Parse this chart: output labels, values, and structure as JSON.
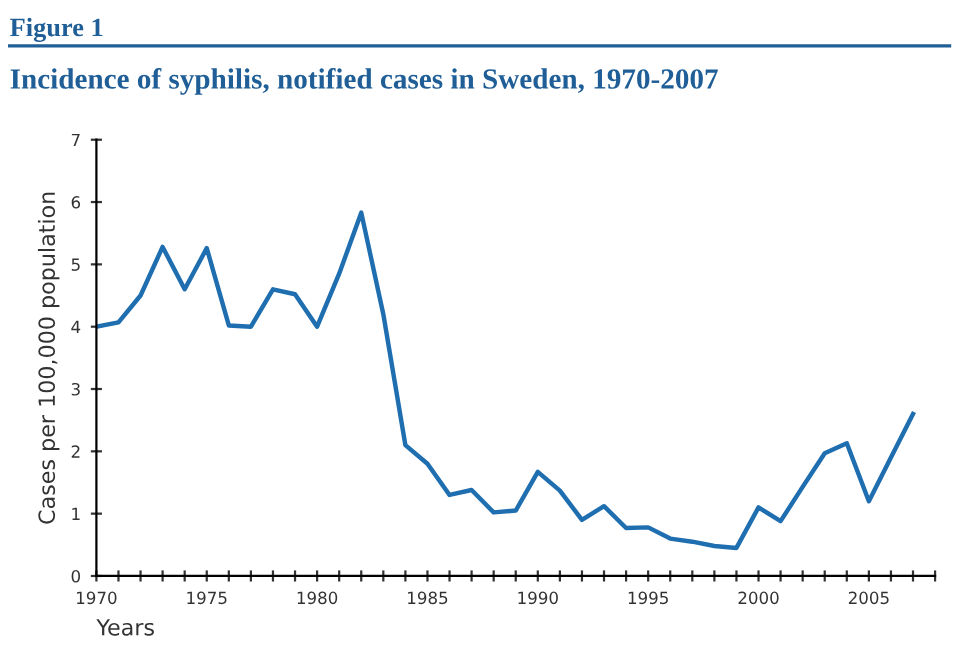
{
  "chart_data": {
    "type": "line",
    "title": "Incidence of syphilis, notified cases in Sweden, 1970-2007",
    "annotations": [
      "Figure 1"
    ],
    "xlabel": "Years",
    "ylabel": "Cases per 100,000 population",
    "x": [
      1970,
      1971,
      1972,
      1973,
      1974,
      1975,
      1976,
      1977,
      1978,
      1979,
      1980,
      1981,
      1982,
      1983,
      1984,
      1985,
      1986,
      1987,
      1988,
      1989,
      1990,
      1991,
      1992,
      1993,
      1994,
      1995,
      1996,
      1997,
      1998,
      1999,
      2000,
      2001,
      2002,
      2003,
      2004,
      2005,
      2006,
      2007
    ],
    "series": [
      {
        "color": "#1f6eb0",
        "values": [
          4.0,
          4.07,
          4.5,
          5.28,
          4.6,
          5.26,
          4.02,
          4.0,
          4.6,
          4.52,
          4.0,
          4.85,
          5.83,
          4.2,
          2.1,
          1.8,
          1.3,
          1.38,
          1.02,
          1.05,
          1.67,
          1.37,
          0.9,
          1.12,
          0.77,
          0.78,
          0.6,
          0.55,
          0.48,
          0.45,
          1.1,
          0.88,
          1.43,
          1.97,
          2.13,
          1.2,
          1.9,
          2.6
        ]
      }
    ],
    "xlim": [
      1970,
      2008
    ],
    "ylim": [
      0,
      7
    ],
    "yticks": [
      0,
      1,
      2,
      3,
      4,
      5,
      6,
      7
    ],
    "xticks": [
      1970,
      {
        "value": 1971,
        "label": null
      },
      {
        "value": 1972,
        "label": null
      },
      {
        "value": 1973,
        "label": null
      },
      {
        "value": 1974,
        "label": null
      },
      1975,
      {
        "value": 1976,
        "label": null
      },
      {
        "value": 1977,
        "label": null
      },
      {
        "value": 1978,
        "label": null
      },
      {
        "value": 1979,
        "label": null
      },
      1980,
      {
        "value": 1981,
        "label": null
      },
      {
        "value": 1982,
        "label": null
      },
      {
        "value": 1983,
        "label": null
      },
      {
        "value": 1984,
        "label": null
      },
      1985,
      {
        "value": 1986,
        "label": null
      },
      {
        "value": 1987,
        "label": null
      },
      {
        "value": 1988,
        "label": null
      },
      {
        "value": 1989,
        "label": null
      },
      1990,
      {
        "value": 1991,
        "label": null
      },
      {
        "value": 1992,
        "label": null
      },
      {
        "value": 1993,
        "label": null
      },
      {
        "value": 1994,
        "label": null
      },
      1995,
      {
        "value": 1996,
        "label": null
      },
      {
        "value": 1997,
        "label": null
      },
      {
        "value": 1998,
        "label": null
      },
      {
        "value": 1999,
        "label": null
      },
      2000,
      {
        "value": 2001,
        "label": null
      },
      {
        "value": 2002,
        "label": null
      },
      {
        "value": 2003,
        "label": null
      },
      {
        "value": 2004,
        "label": null
      },
      2005,
      {
        "value": 2006,
        "label": null
      },
      {
        "value": 2007,
        "label": null
      },
      {
        "value": 2008,
        "label": null
      }
    ],
    "grid": false,
    "marker": "none",
    "line_style": "solid"
  }
}
